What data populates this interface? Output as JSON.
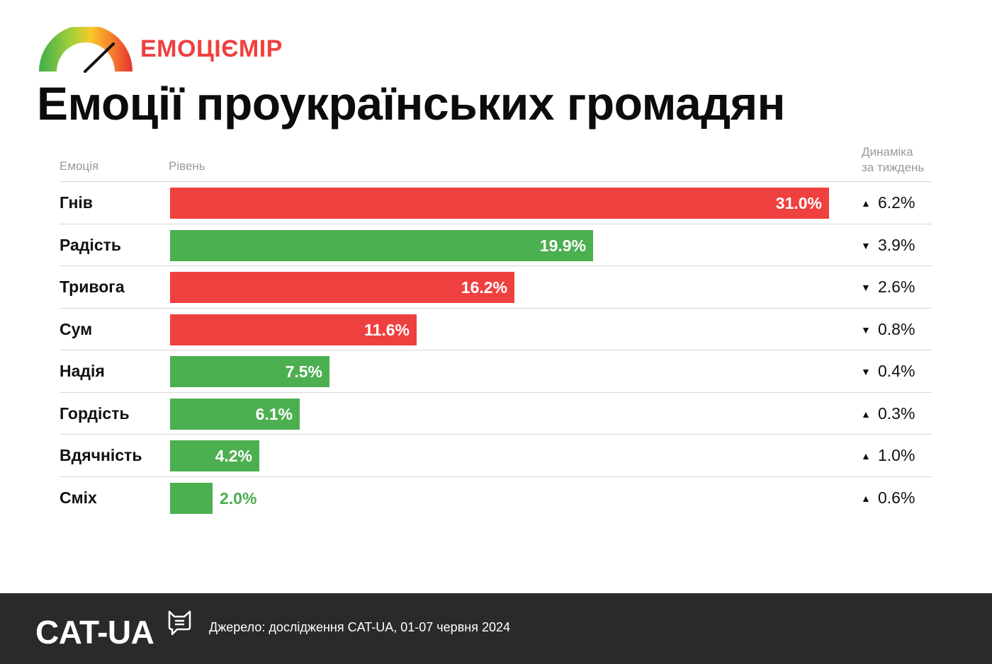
{
  "brand": {
    "name": "ЕМОЦІЄМІР",
    "icon": "speedometer-icon"
  },
  "title": "Емоції проукраїнських громадян",
  "columns": {
    "emotion": "Емоція",
    "level": "Рівень",
    "dynamics_line1": "Динаміка",
    "dynamics_line2": "за тиждень"
  },
  "colors": {
    "negative": "#ef4040",
    "positive": "#4caf50",
    "brand": "#ef4040"
  },
  "chart_data": {
    "type": "bar",
    "orientation": "horizontal",
    "title": "Емоції проукраїнських громадян",
    "xlim": [
      0,
      31
    ],
    "categories": [
      "Гнів",
      "Радість",
      "Тривога",
      "Сум",
      "Надія",
      "Гордість",
      "Вдячність",
      "Сміх"
    ],
    "values": [
      31.0,
      19.9,
      16.2,
      11.6,
      7.5,
      6.1,
      4.2,
      2.0
    ],
    "value_labels": [
      "31.0%",
      "19.9%",
      "16.2%",
      "11.6%",
      "7.5%",
      "6.1%",
      "4.2%",
      "2.0%"
    ],
    "bar_colors": [
      "negative",
      "positive",
      "negative",
      "negative",
      "positive",
      "positive",
      "positive",
      "positive"
    ],
    "weekly_change": [
      {
        "direction": "up",
        "arrow": "▲",
        "label": "6.2%"
      },
      {
        "direction": "down",
        "arrow": "▼",
        "label": "3.9%"
      },
      {
        "direction": "down",
        "arrow": "▼",
        "label": "2.6%"
      },
      {
        "direction": "down",
        "arrow": "▼",
        "label": "0.8%"
      },
      {
        "direction": "down",
        "arrow": "▼",
        "label": "0.4%"
      },
      {
        "direction": "up",
        "arrow": "▲",
        "label": "0.3%"
      },
      {
        "direction": "up",
        "arrow": "▲",
        "label": "1.0%"
      },
      {
        "direction": "up",
        "arrow": "▲",
        "label": "0.6%"
      }
    ],
    "grid": false
  },
  "footer": {
    "logo": "CAT-UA",
    "logo_icon": "cat-speech-bubble-icon",
    "source": "Джерело: дослідження CAT-UA, 01-07 червня 2024"
  }
}
